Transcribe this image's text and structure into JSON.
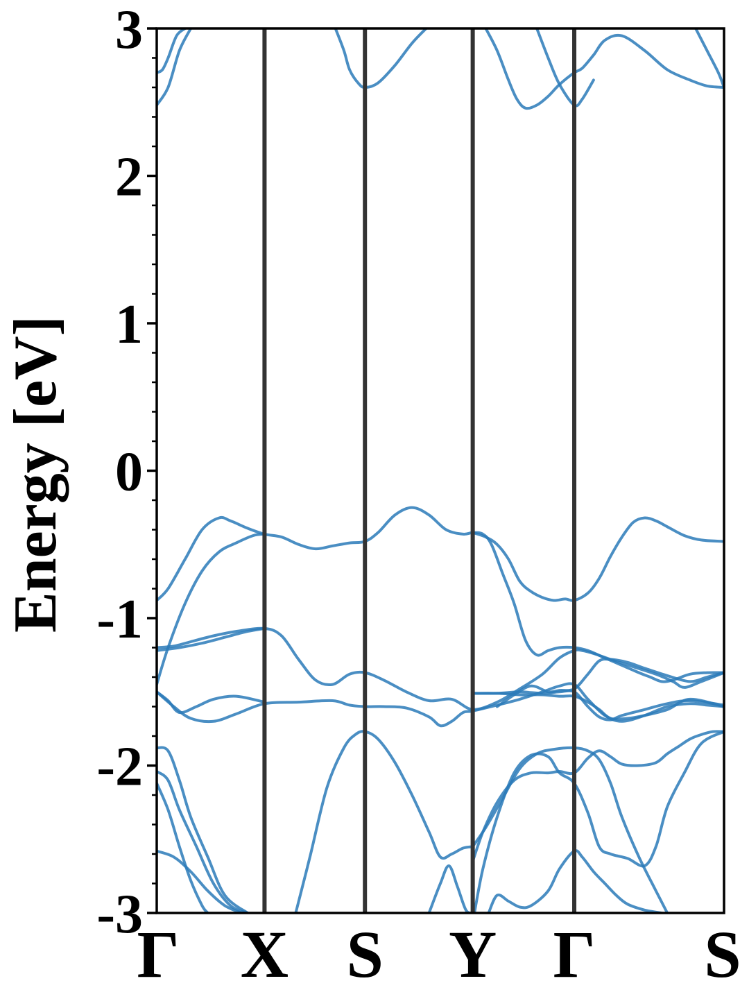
{
  "chart_data": {
    "type": "line",
    "title": "",
    "xlabel": "",
    "ylabel": "Energy [eV]",
    "ylim": [
      -3,
      3
    ],
    "grid": false,
    "legend": "none",
    "x_range": [
      0,
      1
    ],
    "y_ticks": [
      {
        "value": 3,
        "label": "3"
      },
      {
        "value": 2,
        "label": "2"
      },
      {
        "value": 1,
        "label": "1"
      },
      {
        "value": 0,
        "label": "0"
      },
      {
        "value": -1,
        "label": "-1"
      },
      {
        "value": -2,
        "label": "-2"
      },
      {
        "value": -3,
        "label": "-3"
      }
    ],
    "y_minor_step": 0.2,
    "high_symmetry_points": [
      {
        "label": "Γ",
        "x": 0.0
      },
      {
        "label": "X",
        "x": 0.19
      },
      {
        "label": "S",
        "x": 0.367
      },
      {
        "label": "Y",
        "x": 0.557
      },
      {
        "label": "Γ",
        "x": 0.736
      },
      {
        "label": "S",
        "x": 1.0
      }
    ],
    "colors": {
      "band": "#2a7ab9",
      "divider": "#333333",
      "axis": "#000000"
    },
    "series": [
      {
        "x": [
          0,
          0.02,
          0.04,
          0.06
        ],
        "y": [
          2.48,
          2.6,
          2.85,
          3.0
        ]
      },
      {
        "x": [
          0,
          0.01,
          0.02,
          0.035,
          0.05
        ],
        "y": [
          2.7,
          2.72,
          2.8,
          2.95,
          3.0
        ]
      },
      {
        "x": [
          0.315,
          0.33,
          0.34,
          0.355,
          0.367,
          0.39,
          0.42,
          0.45,
          0.475
        ],
        "y": [
          3.0,
          2.85,
          2.72,
          2.63,
          2.6,
          2.63,
          2.75,
          2.9,
          3.0
        ]
      },
      {
        "x": [
          0.58,
          0.6,
          0.62,
          0.635,
          0.65,
          0.67,
          0.69,
          0.71,
          0.736,
          0.75,
          0.77,
          0.79,
          0.82,
          0.86,
          0.9,
          0.94,
          0.97,
          1.0
        ],
        "y": [
          3.0,
          2.85,
          2.65,
          2.52,
          2.46,
          2.48,
          2.54,
          2.62,
          2.7,
          2.73,
          2.82,
          2.92,
          2.95,
          2.85,
          2.72,
          2.65,
          2.61,
          2.6
        ]
      },
      {
        "x": [
          0.67,
          0.69,
          0.71,
          0.736,
          0.75,
          0.77
        ],
        "y": [
          3.0,
          2.8,
          2.62,
          2.48,
          2.52,
          2.65
        ]
      },
      {
        "x": [
          0.95,
          0.97,
          0.99,
          1.0
        ],
        "y": [
          3.0,
          2.85,
          2.7,
          2.6
        ]
      },
      {
        "x": [
          0,
          0.02,
          0.05,
          0.08,
          0.11,
          0.13,
          0.16,
          0.19,
          0.22,
          0.25,
          0.28,
          0.31,
          0.34,
          0.367,
          0.39,
          0.42,
          0.45,
          0.48,
          0.51,
          0.54,
          0.557,
          0.575,
          0.59,
          0.61,
          0.63,
          0.65,
          0.67,
          0.69,
          0.71,
          0.736,
          0.76,
          0.79,
          0.82,
          0.85,
          0.87,
          0.89,
          0.91,
          0.94,
          0.97,
          1.0
        ],
        "y": [
          -0.88,
          -0.8,
          -0.6,
          -0.4,
          -0.32,
          -0.34,
          -0.39,
          -0.43,
          -0.45,
          -0.5,
          -0.53,
          -0.51,
          -0.49,
          -0.48,
          -0.42,
          -0.3,
          -0.25,
          -0.3,
          -0.4,
          -0.43,
          -0.42,
          -0.43,
          -0.5,
          -0.7,
          -0.9,
          -1.15,
          -1.25,
          -1.22,
          -1.2,
          -1.2,
          -1.22,
          -1.27,
          -1.32,
          -1.37,
          -1.4,
          -1.43,
          -1.42,
          -1.38,
          -1.37,
          -1.37
        ]
      },
      {
        "x": [
          0,
          0.02,
          0.05,
          0.08,
          0.11,
          0.14,
          0.17,
          0.19
        ],
        "y": [
          -1.45,
          -1.2,
          -0.9,
          -0.68,
          -0.55,
          -0.49,
          -0.44,
          -0.43
        ]
      },
      {
        "x": [
          0.557,
          0.58,
          0.6,
          0.62,
          0.64,
          0.66,
          0.68,
          0.7,
          0.72,
          0.736,
          0.76,
          0.78,
          0.8,
          0.82,
          0.84,
          0.86,
          0.88,
          0.9,
          0.93,
          0.96,
          1.0
        ],
        "y": [
          -0.42,
          -0.45,
          -0.5,
          -0.6,
          -0.75,
          -0.82,
          -0.86,
          -0.88,
          -0.87,
          -0.88,
          -0.83,
          -0.73,
          -0.58,
          -0.45,
          -0.35,
          -0.32,
          -0.34,
          -0.38,
          -0.44,
          -0.47,
          -0.48
        ]
      },
      {
        "x": [
          0,
          0.03,
          0.06,
          0.1,
          0.14,
          0.19,
          0.22,
          0.25,
          0.28,
          0.31,
          0.34,
          0.367,
          0.4,
          0.44,
          0.48,
          0.52,
          0.557,
          0.6,
          0.64,
          0.68,
          0.71,
          0.736,
          0.75,
          0.77,
          0.8,
          0.84,
          0.88,
          0.91,
          0.93,
          0.96,
          1.0
        ],
        "y": [
          -1.2,
          -1.19,
          -1.16,
          -1.12,
          -1.09,
          -1.07,
          -1.12,
          -1.28,
          -1.42,
          -1.45,
          -1.38,
          -1.37,
          -1.42,
          -1.5,
          -1.56,
          -1.55,
          -1.62,
          -1.57,
          -1.48,
          -1.38,
          -1.27,
          -1.22,
          -1.22,
          -1.24,
          -1.28,
          -1.33,
          -1.38,
          -1.43,
          -1.47,
          -1.43,
          -1.37
        ]
      },
      {
        "x": [
          0,
          0.04,
          0.08,
          0.12,
          0.16,
          0.19
        ],
        "y": [
          -1.22,
          -1.2,
          -1.17,
          -1.13,
          -1.09,
          -1.07
        ]
      },
      {
        "x": [
          0,
          0.03,
          0.06,
          0.1,
          0.14,
          0.19,
          0.25,
          0.31,
          0.34,
          0.367,
          0.4,
          0.44,
          0.48,
          0.5,
          0.52,
          0.54,
          0.557,
          0.6,
          0.64,
          0.68,
          0.71,
          0.736,
          0.76,
          0.79,
          0.82,
          0.86,
          0.9,
          0.94,
          0.97,
          1.0
        ],
        "y": [
          -1.5,
          -1.6,
          -1.68,
          -1.7,
          -1.65,
          -1.58,
          -1.57,
          -1.56,
          -1.59,
          -1.6,
          -1.6,
          -1.61,
          -1.67,
          -1.73,
          -1.7,
          -1.64,
          -1.63,
          -1.59,
          -1.55,
          -1.5,
          -1.46,
          -1.45,
          -1.55,
          -1.66,
          -1.7,
          -1.66,
          -1.6,
          -1.58,
          -1.59,
          -1.6
        ]
      },
      {
        "x": [
          0,
          0.02,
          0.04,
          0.07,
          0.1,
          0.14,
          0.19
        ],
        "y": [
          -1.5,
          -1.56,
          -1.64,
          -1.6,
          -1.55,
          -1.53,
          -1.57
        ]
      },
      {
        "x": [
          0.557,
          0.6,
          0.64,
          0.68,
          0.71,
          0.736,
          0.76,
          0.78,
          0.8,
          0.83,
          0.86,
          0.9,
          0.94,
          1.0
        ],
        "y": [
          -1.51,
          -1.51,
          -1.52,
          -1.52,
          -1.53,
          -1.53,
          -1.57,
          -1.62,
          -1.68,
          -1.68,
          -1.66,
          -1.62,
          -1.55,
          -1.6
        ]
      },
      {
        "x": [
          0.557,
          0.6,
          0.64,
          0.68,
          0.71,
          0.736,
          0.76,
          0.78,
          0.8,
          0.82,
          0.86,
          0.9,
          0.94,
          1.0
        ],
        "y": [
          -1.51,
          -1.51,
          -1.5,
          -1.51,
          -1.5,
          -1.5,
          -1.6,
          -1.67,
          -1.69,
          -1.66,
          -1.62,
          -1.58,
          -1.56,
          -1.59
        ]
      },
      {
        "x": [
          0.6,
          0.63,
          0.66,
          0.69,
          0.71,
          0.736,
          0.76,
          0.78,
          0.8,
          0.83,
          0.86,
          0.9,
          0.94,
          0.97,
          1.0
        ],
        "y": [
          -1.6,
          -1.52,
          -1.46,
          -1.5,
          -1.49,
          -1.48,
          -1.38,
          -1.29,
          -1.28,
          -1.3,
          -1.34,
          -1.39,
          -1.43,
          -1.4,
          -1.37
        ]
      },
      {
        "x": [
          0,
          0.02,
          0.04,
          0.06,
          0.09,
          0.12,
          0.16
        ],
        "y": [
          -1.88,
          -1.9,
          -2.1,
          -2.35,
          -2.62,
          -2.88,
          -3.0
        ]
      },
      {
        "x": [
          0,
          0.02,
          0.04,
          0.07,
          0.1,
          0.13,
          0.16
        ],
        "y": [
          -2.04,
          -2.1,
          -2.3,
          -2.55,
          -2.8,
          -2.95,
          -3.0
        ]
      },
      {
        "x": [
          0,
          0.02,
          0.04,
          0.06,
          0.08,
          0.09
        ],
        "y": [
          -2.12,
          -2.3,
          -2.55,
          -2.78,
          -2.95,
          -3.0
        ]
      },
      {
        "x": [
          0,
          0.03,
          0.06,
          0.09,
          0.12,
          0.15
        ],
        "y": [
          -2.58,
          -2.62,
          -2.72,
          -2.85,
          -2.95,
          -3.0
        ]
      },
      {
        "x": [
          0.245,
          0.27,
          0.3,
          0.33,
          0.35,
          0.367,
          0.39,
          0.42,
          0.45,
          0.48,
          0.5,
          0.52,
          0.54,
          0.557
        ],
        "y": [
          -3.0,
          -2.62,
          -2.15,
          -1.88,
          -1.79,
          -1.77,
          -1.82,
          -1.98,
          -2.2,
          -2.45,
          -2.62,
          -2.6,
          -2.56,
          -2.55
        ]
      },
      {
        "x": [
          0.48,
          0.5,
          0.515,
          0.53,
          0.545,
          0.557
        ],
        "y": [
          -3.0,
          -2.8,
          -2.68,
          -2.82,
          -2.98,
          -3.0
        ]
      },
      {
        "x": [
          0.557,
          0.58,
          0.61,
          0.64,
          0.67,
          0.7,
          0.736,
          0.76,
          0.78,
          0.8,
          0.82,
          0.85,
          0.88,
          0.9
        ],
        "y": [
          -2.55,
          -2.42,
          -2.22,
          -2.02,
          -1.92,
          -1.89,
          -1.88,
          -1.9,
          -1.96,
          -2.12,
          -2.35,
          -2.62,
          -2.85,
          -3.0
        ]
      },
      {
        "x": [
          0.557,
          0.575,
          0.6,
          0.63,
          0.66,
          0.69,
          0.71,
          0.736,
          0.76,
          0.78,
          0.8,
          0.82,
          0.85,
          0.88,
          0.9,
          0.92,
          0.94,
          0.96,
          0.98,
          1.0
        ],
        "y": [
          -2.65,
          -2.45,
          -2.25,
          -2.1,
          -2.05,
          -2.05,
          -2.04,
          -2.05,
          -1.95,
          -1.9,
          -1.94,
          -1.99,
          -2.0,
          -1.98,
          -1.92,
          -1.87,
          -1.82,
          -1.79,
          -1.77,
          -1.77
        ]
      },
      {
        "x": [
          0.56,
          0.575,
          0.6,
          0.63,
          0.66,
          0.69,
          0.71,
          0.736,
          0.76,
          0.78,
          0.8,
          0.83,
          0.86,
          0.88,
          0.9,
          0.93,
          0.96,
          1.0
        ],
        "y": [
          -3.0,
          -2.7,
          -2.35,
          -2.05,
          -1.93,
          -1.94,
          -2.05,
          -2.12,
          -2.32,
          -2.55,
          -2.6,
          -2.63,
          -2.68,
          -2.55,
          -2.28,
          -2.05,
          -1.85,
          -1.77
        ]
      },
      {
        "x": [
          0.585,
          0.6,
          0.62,
          0.64,
          0.66,
          0.69,
          0.71,
          0.736,
          0.75,
          0.77,
          0.79,
          0.81,
          0.83,
          0.86,
          0.89
        ],
        "y": [
          -3.0,
          -2.88,
          -2.92,
          -2.96,
          -2.95,
          -2.85,
          -2.7,
          -2.58,
          -2.62,
          -2.72,
          -2.8,
          -2.88,
          -2.94,
          -2.98,
          -3.0
        ]
      }
    ]
  }
}
